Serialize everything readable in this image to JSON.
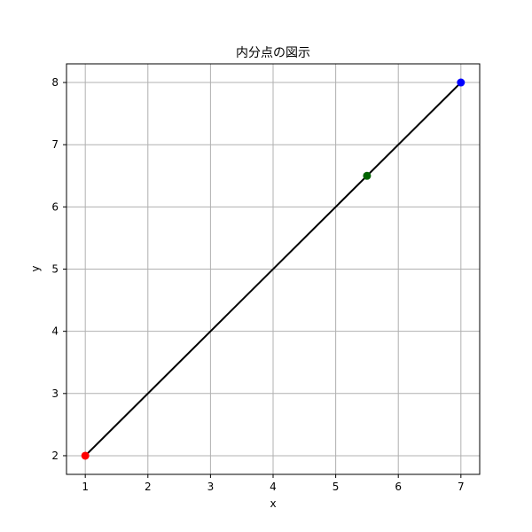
{
  "chart_data": {
    "type": "scatter",
    "title": "内分点の図示",
    "xlabel": "x",
    "ylabel": "y",
    "xlim": [
      0.7,
      7.3
    ],
    "ylim": [
      1.7,
      8.3
    ],
    "xticks": [
      1,
      2,
      3,
      4,
      5,
      6,
      7
    ],
    "yticks": [
      2,
      3,
      4,
      5,
      6,
      7,
      8
    ],
    "grid": true,
    "segment": {
      "from": [
        1,
        2
      ],
      "to": [
        7,
        8
      ],
      "color": "#000000"
    },
    "points": [
      {
        "x": 1,
        "y": 2,
        "color": "#ff0000"
      },
      {
        "x": 7,
        "y": 8,
        "color": "#0000ff"
      },
      {
        "x": 5.5,
        "y": 6.5,
        "color": "#006400"
      }
    ]
  },
  "colors": {
    "grid": "#b0b0b0",
    "axes": "#000000",
    "background": "#ffffff"
  }
}
